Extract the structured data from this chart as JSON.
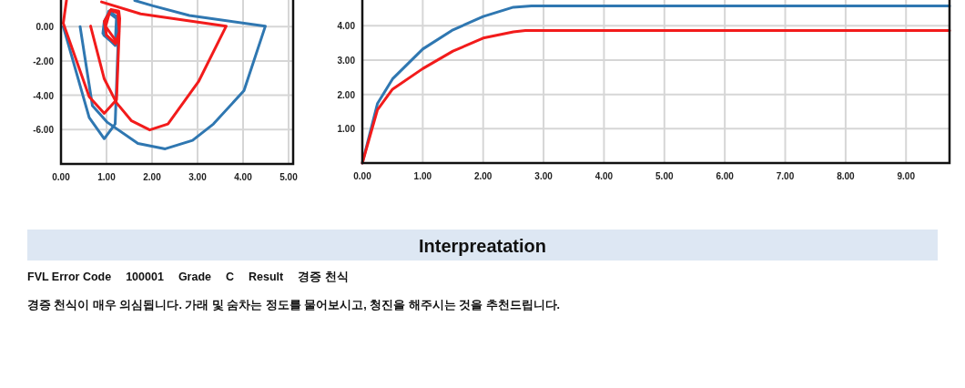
{
  "chart_data": [
    {
      "type": "line",
      "grid": true,
      "xlim": [
        0,
        5.1
      ],
      "ylim": [
        -8,
        1.55
      ],
      "xticks": [
        {
          "value": 0,
          "label": "0.00"
        },
        {
          "value": 1,
          "label": "1.00"
        },
        {
          "value": 2,
          "label": "2.00"
        },
        {
          "value": 3,
          "label": "3.00"
        },
        {
          "value": 4,
          "label": "4.00"
        },
        {
          "value": 5,
          "label": "5.00"
        }
      ],
      "yticks": [
        {
          "value": -6,
          "label": "-6.00"
        },
        {
          "value": -4,
          "label": "-4.00"
        },
        {
          "value": -2,
          "label": "-2.00"
        },
        {
          "value": 0,
          "label": "0.00"
        }
      ],
      "series": [
        {
          "color": "#2f77b1",
          "x": [
            1.62,
            2.02,
            2.82,
            4.49,
            4.02,
            3.35,
            2.89,
            2.29,
            1.69,
            1.02,
            0.69,
            0.42
          ],
          "values": [
            1.52,
            1.21,
            0.65,
            0.03,
            -3.73,
            -5.67,
            -6.63,
            -7.12,
            -6.81,
            -5.58,
            -4.61,
            0.0
          ]
        },
        {
          "color": "#2f77b1",
          "x": [
            0.05,
            0.62,
            0.95,
            1.19,
            1.25,
            1.22,
            1.05,
            0.95,
            0.92,
            1.19,
            1.22,
            1.05,
            0.97,
            0.94,
            1.16
          ],
          "values": [
            0.0,
            -5.3,
            -6.53,
            -5.67,
            -1.28,
            0.47,
            0.82,
            0.3,
            -0.4,
            -1.1,
            0.6,
            0.9,
            0.2,
            -0.5,
            -1.0
          ]
        },
        {
          "color": "#f21b1b",
          "x": [
            0.89,
            1.75,
            3.63,
            3.02,
            2.35,
            1.95,
            1.55,
            1.22,
            0.95,
            0.65
          ],
          "values": [
            1.44,
            0.74,
            0.03,
            -3.21,
            -5.67,
            -6.02,
            -5.49,
            -4.44,
            -3.04,
            0.03
          ]
        },
        {
          "color": "#f21b1b",
          "x": [
            0.12,
            0.05,
            0.62,
            0.95,
            1.22,
            1.29,
            1.27,
            1.1,
            0.95,
            1.0,
            1.2,
            1.28,
            1.25,
            1.08,
            0.98,
            1.2
          ],
          "values": [
            1.52,
            0.2,
            -4.09,
            -5.05,
            -4.26,
            0.47,
            0.9,
            1.0,
            0.3,
            -0.5,
            -1.0,
            -0.3,
            0.8,
            0.95,
            0.0,
            -0.8
          ]
        }
      ]
    },
    {
      "type": "line",
      "grid": true,
      "xlim": [
        0,
        9.72
      ],
      "ylim": [
        0,
        4.75
      ],
      "xticks": [
        {
          "value": 0,
          "label": "0.00"
        },
        {
          "value": 1,
          "label": "1.00"
        },
        {
          "value": 2,
          "label": "2.00"
        },
        {
          "value": 3,
          "label": "3.00"
        },
        {
          "value": 4,
          "label": "4.00"
        },
        {
          "value": 5,
          "label": "5.00"
        },
        {
          "value": 6,
          "label": "6.00"
        },
        {
          "value": 7,
          "label": "7.00"
        },
        {
          "value": 8,
          "label": "8.00"
        },
        {
          "value": 9,
          "label": "9.00"
        }
      ],
      "yticks": [
        {
          "value": 1,
          "label": "1.00"
        },
        {
          "value": 2,
          "label": "2.00"
        },
        {
          "value": 3,
          "label": "3.00"
        },
        {
          "value": 4,
          "label": "4.00"
        }
      ],
      "series": [
        {
          "color": "#2f77b1",
          "x": [
            0,
            0.25,
            0.5,
            1,
            1.5,
            2,
            2.5,
            2.8,
            9.72
          ],
          "values": [
            0,
            1.73,
            2.45,
            3.32,
            3.88,
            4.27,
            4.54,
            4.58,
            4.58
          ]
        },
        {
          "color": "#f21b1b",
          "x": [
            0,
            0.25,
            0.5,
            1,
            1.5,
            2,
            2.5,
            2.7,
            9.72
          ],
          "values": [
            0,
            1.55,
            2.15,
            2.75,
            3.26,
            3.64,
            3.82,
            3.86,
            3.86
          ]
        }
      ]
    },
    {
      "type": "other",
      "title": "Interpreatation",
      "annotations": [
        "FVL Error Code",
        "100001",
        "Grade",
        "C",
        "Result",
        "경증 천식",
        "경증 천식이 매우 의심됩니다. 가래 및 숨차는 정도를 물어보시고, 청진을 해주시는 것을 추천드립니다."
      ]
    }
  ]
}
